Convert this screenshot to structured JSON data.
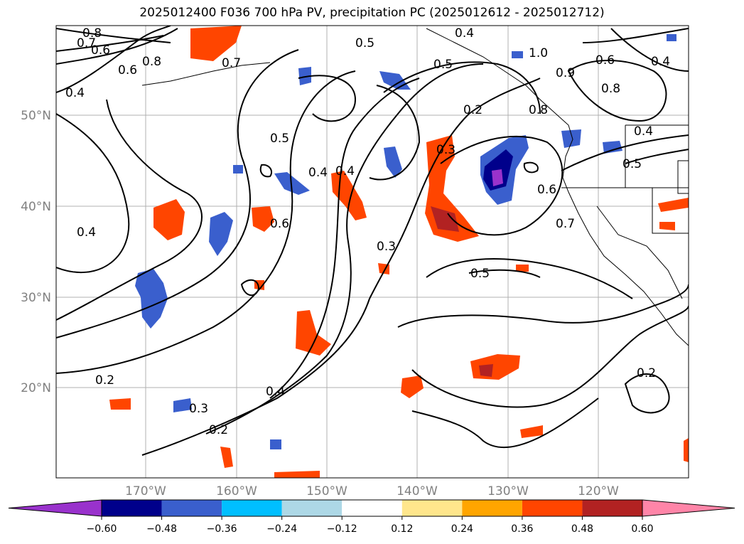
{
  "title": "2025012400 F036 700 hPa PV, precipitation PC (2025012612 - 2025012712)",
  "lat_labels": [
    "50°N",
    "40°N",
    "30°N",
    "20°N"
  ],
  "lon_labels": [
    "170°W",
    "160°W",
    "150°W",
    "140°W",
    "130°W",
    "120°W"
  ],
  "contour_labels": [
    "0.8",
    "0.7",
    "0.6",
    "0.6",
    "0.8",
    "0.4",
    "0.7",
    "0.5",
    "0.4",
    "0.4",
    "0.6",
    "0.3",
    "0.2",
    "0.3",
    "0.5",
    "0.4",
    "0.4",
    "0.2",
    "0.3",
    "0.2",
    "1.0",
    "0.9",
    "0.8",
    "0.6",
    "0.8",
    "0.4",
    "0.4",
    "0.5",
    "0.6",
    "0.7",
    "0.5",
    "0.2",
    "0.4",
    "0.5"
  ],
  "colorbar": {
    "ticks": [
      "−0.60",
      "−0.48",
      "−0.36",
      "−0.24",
      "−0.12",
      "0.12",
      "0.24",
      "0.36",
      "0.48",
      "0.60"
    ],
    "colors": [
      "#9932cc",
      "#00008b",
      "#3a5fcd",
      "#00bfff",
      "#add8e6",
      "#ffffff",
      "#ffe68c",
      "#ffa500",
      "#ff4500",
      "#b22222",
      "#ff85a8"
    ]
  }
}
